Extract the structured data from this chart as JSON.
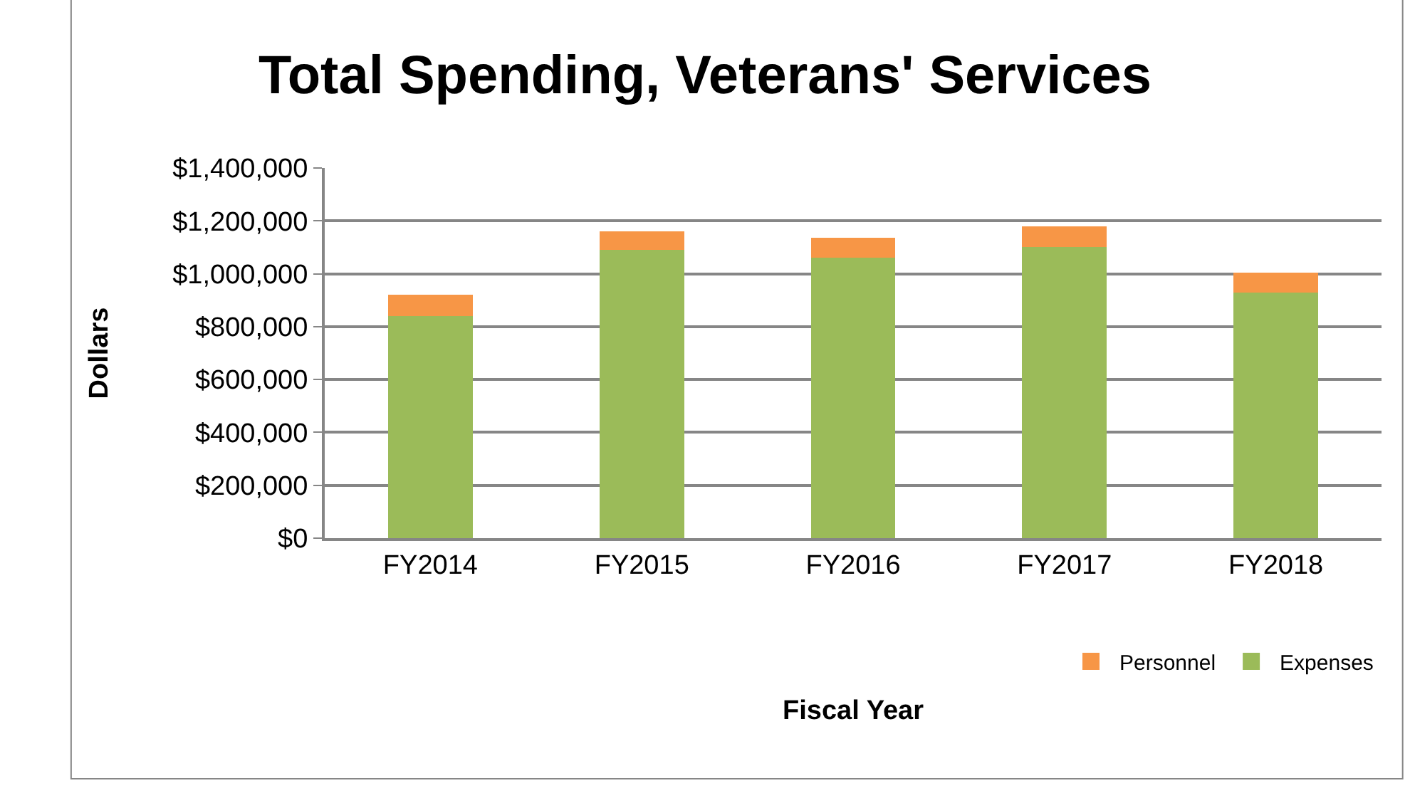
{
  "chart_data": {
    "type": "bar",
    "title": "Total Spending, Veterans' Services",
    "xlabel": "Fiscal Year",
    "ylabel": "Dollars",
    "categories": [
      "FY2014",
      "FY2015",
      "FY2016",
      "FY2017",
      "FY2018"
    ],
    "series": [
      {
        "name": "Expenses",
        "color": "#9bbb59",
        "values": [
          840000,
          1090000,
          1060000,
          1100000,
          930000
        ]
      },
      {
        "name": "Personnel",
        "color": "#f79646",
        "values": [
          80000,
          70000,
          75000,
          80000,
          75000
        ]
      }
    ],
    "stacked": true,
    "ylim": [
      0,
      1400000
    ],
    "yticks": [
      {
        "value": 0,
        "label": "$0"
      },
      {
        "value": 200000,
        "label": "$200,000"
      },
      {
        "value": 400000,
        "label": "$400,000"
      },
      {
        "value": 600000,
        "label": "$600,000"
      },
      {
        "value": 800000,
        "label": "$800,000"
      },
      {
        "value": 1000000,
        "label": "$1,000,000"
      },
      {
        "value": 1200000,
        "label": "$1,200,000"
      },
      {
        "value": 1400000,
        "label": "$1,400,000"
      }
    ],
    "grid": "y",
    "legend": "bottom right"
  }
}
